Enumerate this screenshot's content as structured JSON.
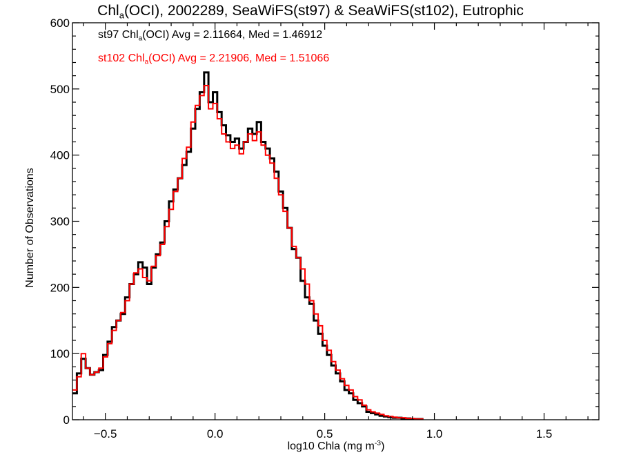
{
  "chart_data": {
    "type": "histogram",
    "title": {
      "prefix": "Chl",
      "sub": "a",
      "suffix": "(OCI), 2002289, SeaWiFS(st97) & SeaWiFS(st102), Eutrophic"
    },
    "xlabel": {
      "text": "log10 Chla (mg m",
      "sup": "-3",
      "close": ")"
    },
    "ylabel": "Number of Observations",
    "xlim": [
      -0.65,
      1.75
    ],
    "ylim": [
      0,
      600
    ],
    "xticks": [
      -0.5,
      0.0,
      0.5,
      1.0,
      1.5
    ],
    "xtick_labels": [
      "−0.5",
      "0.0",
      "0.5",
      "1.0",
      "1.5"
    ],
    "yticks": [
      0,
      100,
      200,
      300,
      400,
      500,
      600
    ],
    "ytick_labels": [
      "0",
      "100",
      "200",
      "300",
      "400",
      "500",
      "600"
    ],
    "grid": false,
    "legend_position": "top-left",
    "bin_start": -0.65,
    "bin_width": 0.02,
    "series": [
      {
        "name": "st97",
        "color": "#000000",
        "legend_parts": [
          "st97 Chl",
          "a",
          "(OCI) Avg = 2.11664, Med = 1.46912"
        ],
        "values": [
          40,
          70,
          92,
          78,
          68,
          72,
          75,
          98,
          118,
          140,
          150,
          160,
          185,
          205,
          220,
          238,
          230,
          205,
          230,
          250,
          268,
          300,
          330,
          348,
          365,
          385,
          405,
          440,
          470,
          495,
          525,
          480,
          495,
          465,
          445,
          430,
          420,
          425,
          410,
          420,
          440,
          432,
          450,
          420,
          410,
          395,
          375,
          345,
          320,
          290,
          258,
          245,
          210,
          185,
          175,
          150,
          130,
          112,
          98,
          82,
          70,
          58,
          45,
          40,
          30,
          25,
          20,
          12,
          10,
          8,
          6,
          5,
          4,
          3,
          3,
          2,
          2,
          1,
          1,
          1
        ]
      },
      {
        "name": "st102",
        "color": "#ff0000",
        "legend_parts": [
          "st102 Chl",
          "a",
          "(OCI) Avg = 2.21906, Med = 1.51066"
        ],
        "values": [
          45,
          65,
          100,
          78,
          68,
          72,
          78,
          95,
          115,
          135,
          150,
          162,
          180,
          205,
          222,
          228,
          215,
          210,
          232,
          248,
          265,
          292,
          318,
          345,
          365,
          395,
          412,
          450,
          475,
          490,
          505,
          470,
          478,
          455,
          432,
          420,
          410,
          415,
          402,
          420,
          432,
          422,
          435,
          415,
          400,
          388,
          365,
          340,
          315,
          290,
          262,
          245,
          228,
          205,
          180,
          160,
          142,
          120,
          105,
          88,
          75,
          62,
          52,
          45,
          35,
          30,
          22,
          15,
          12,
          10,
          8,
          6,
          5,
          4,
          3,
          3,
          2,
          2,
          1,
          1
        ]
      }
    ]
  }
}
